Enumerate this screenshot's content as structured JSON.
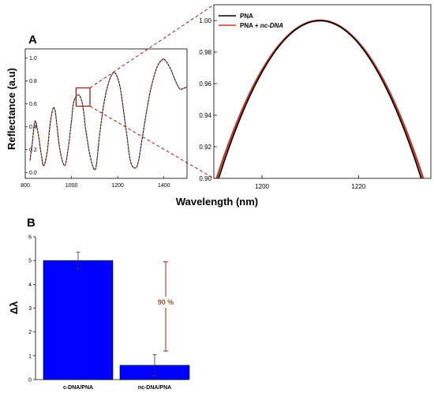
{
  "chart_data": [
    {
      "panel": "A",
      "type": "line",
      "xlabel": "Wavelength (nm)",
      "ylabel": "Reflectance (a.u)",
      "xlim": [
        800,
        1500
      ],
      "ylim": [
        -0.05,
        1.08
      ],
      "xticks": [
        "800",
        "1000",
        "1200",
        "1400"
      ],
      "yticks": [
        "0.0",
        "0.2",
        "0.4",
        "0.6",
        "0.8",
        "1.0"
      ],
      "series": [
        {
          "color": "#000000",
          "x": [
            820,
            830,
            842,
            855,
            870,
            880,
            895,
            905,
            915,
            923,
            930,
            935,
            950,
            970,
            985,
            1000,
            1010,
            1030,
            1045,
            1055,
            1060,
            1080,
            1098,
            1108,
            1120,
            1140,
            1160,
            1180,
            1195,
            1210,
            1220,
            1240,
            1255,
            1275,
            1290,
            1310,
            1340,
            1370,
            1395,
            1410,
            1430,
            1450,
            1470,
            1490,
            1500
          ],
          "y": [
            0.1,
            0.25,
            0.45,
            0.35,
            0.15,
            0.06,
            0.18,
            0.38,
            0.52,
            0.57,
            0.53,
            0.45,
            0.2,
            0.06,
            0.2,
            0.45,
            0.62,
            0.68,
            0.62,
            0.5,
            0.4,
            0.15,
            0.03,
            0.07,
            0.3,
            0.6,
            0.78,
            0.87,
            0.85,
            0.75,
            0.62,
            0.32,
            0.1,
            0.04,
            0.1,
            0.35,
            0.7,
            0.92,
            0.99,
            0.97,
            0.9,
            0.8,
            0.73,
            0.74,
            0.75
          ]
        },
        {
          "color": "#e0736a",
          "x": [
            820,
            830,
            842,
            855,
            870,
            880,
            895,
            905,
            915,
            923,
            930,
            935,
            950,
            970,
            985,
            1000,
            1010,
            1030,
            1045,
            1055,
            1060,
            1080,
            1098,
            1108,
            1120,
            1140,
            1160,
            1180,
            1195,
            1210,
            1220,
            1240,
            1255,
            1275,
            1290,
            1310,
            1340,
            1370,
            1395,
            1410,
            1430,
            1450,
            1470,
            1490,
            1500
          ],
          "y": [
            0.1,
            0.25,
            0.45,
            0.35,
            0.15,
            0.06,
            0.18,
            0.38,
            0.52,
            0.57,
            0.53,
            0.45,
            0.2,
            0.06,
            0.2,
            0.45,
            0.62,
            0.68,
            0.62,
            0.5,
            0.4,
            0.15,
            0.03,
            0.07,
            0.3,
            0.6,
            0.78,
            0.87,
            0.85,
            0.75,
            0.62,
            0.32,
            0.1,
            0.04,
            0.1,
            0.35,
            0.7,
            0.92,
            0.99,
            0.97,
            0.9,
            0.8,
            0.73,
            0.74,
            0.75
          ]
        }
      ],
      "zoom_box": {
        "x": [
          1020,
          1080
        ],
        "y": [
          0.58,
          0.74
        ]
      }
    },
    {
      "panel": "A-inset",
      "type": "line",
      "xlim": [
        1190,
        1235
      ],
      "ylim": [
        0.9,
        1.01
      ],
      "xticks": [
        "1200",
        "1220"
      ],
      "yticks": [
        "0.90",
        "0.92",
        "0.94",
        "0.96",
        "0.98",
        "1.00"
      ],
      "legend": "top-left",
      "series": [
        {
          "name": "PNA",
          "color": "#000000",
          "peak_x": 1212,
          "peak_y": 1.0,
          "x_at_0_90": [
            1191,
            1233
          ]
        },
        {
          "name": "PNA + nc-DNA",
          "color": "#c0392b",
          "peak_x": 1212,
          "peak_y": 1.0,
          "x_at_0_90": [
            1190.6,
            1233.4
          ]
        }
      ]
    },
    {
      "panel": "B",
      "type": "bar",
      "ylabel": "Δλ",
      "ylim": [
        0,
        6
      ],
      "yticks": [
        "0",
        "1",
        "2",
        "3",
        "4",
        "5",
        "6"
      ],
      "categories": [
        "c-DNA/PNA",
        "nc-DNA/PNA"
      ],
      "values": [
        5.0,
        0.6
      ],
      "errors": [
        0.35,
        0.45
      ],
      "bar_color": "#0000ff",
      "annotation": {
        "text": "90 %",
        "color": "#a0522d",
        "y_range": [
          1.2,
          4.95
        ]
      }
    }
  ]
}
